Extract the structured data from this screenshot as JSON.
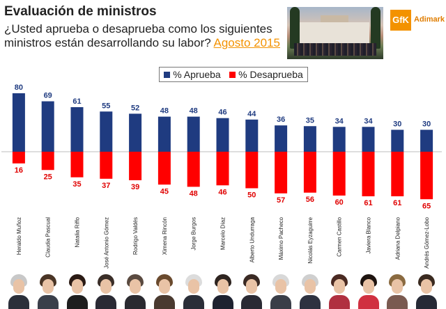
{
  "header": {
    "title": "Evaluación de ministros",
    "question": "¿Usted aprueba o desaprueba como los siguientes ministros están desarrollando su labor?",
    "date_link": "Agosto 2015"
  },
  "logo": {
    "mark": "GfK",
    "brand": "Adimark"
  },
  "legend": {
    "approve": "% Aprueba",
    "disapprove": "% Desaprueba"
  },
  "colors": {
    "approve": "#1f3b80",
    "disapprove": "#ff0000",
    "accent": "#f39200"
  },
  "chart_data": {
    "type": "bar",
    "title": "Evaluación de ministros",
    "categories": [
      "Heraldo Muñoz",
      "Claudia Pascual",
      "Natalia Riffo",
      "José Antonio Gómez",
      "Rodrigo Valdés",
      "Ximena Rincón",
      "Jorge Burgos",
      "Marcelo Díaz",
      "Alberto Undurraga",
      "Máximo Pacheco",
      "Nicolás Eyzaguirre",
      "Carmen Castillo",
      "Javiera Blanco",
      "Adriana Delpiano",
      "Andrés Gómez-Lobo"
    ],
    "series": [
      {
        "name": "% Aprueba",
        "values": [
          80,
          69,
          61,
          55,
          52,
          48,
          48,
          46,
          44,
          36,
          35,
          34,
          34,
          30,
          30
        ]
      },
      {
        "name": "% Desaprueba",
        "values": [
          16,
          25,
          35,
          37,
          39,
          45,
          48,
          46,
          50,
          57,
          56,
          60,
          61,
          61,
          65
        ]
      }
    ],
    "layout": "diverging: aprueba above baseline, desaprueba below",
    "legend_position": "top-center",
    "ylim": [
      -65,
      80
    ]
  },
  "portraits": [
    {
      "hair": "#c8c8c8",
      "suit": "#2b2f3a"
    },
    {
      "hair": "#4a3526",
      "suit": "#3a3f4a"
    },
    {
      "hair": "#2a1a14",
      "suit": "#1e1e1e"
    },
    {
      "hair": "#3a2e28",
      "suit": "#2a2a34"
    },
    {
      "hair": "#5a4a40",
      "suit": "#2a2a30"
    },
    {
      "hair": "#6a4a2e",
      "suit": "#4a3a30"
    },
    {
      "hair": "#dcdcdc",
      "suit": "#2a2e38"
    },
    {
      "hair": "#2e2420",
      "suit": "#1e2230"
    },
    {
      "hair": "#3a2a24",
      "suit": "#2a2a34"
    },
    {
      "hair": "#d8d8d8",
      "suit": "#3a3e48"
    },
    {
      "hair": "#cfcfcf",
      "suit": "#2e3240"
    },
    {
      "hair": "#4a2a22",
      "suit": "#b03040"
    },
    {
      "hair": "#1e1410",
      "suit": "#d03040"
    },
    {
      "hair": "#8a6a40",
      "suit": "#7a5a50"
    },
    {
      "hair": "#3a2a20",
      "suit": "#262a36"
    }
  ]
}
